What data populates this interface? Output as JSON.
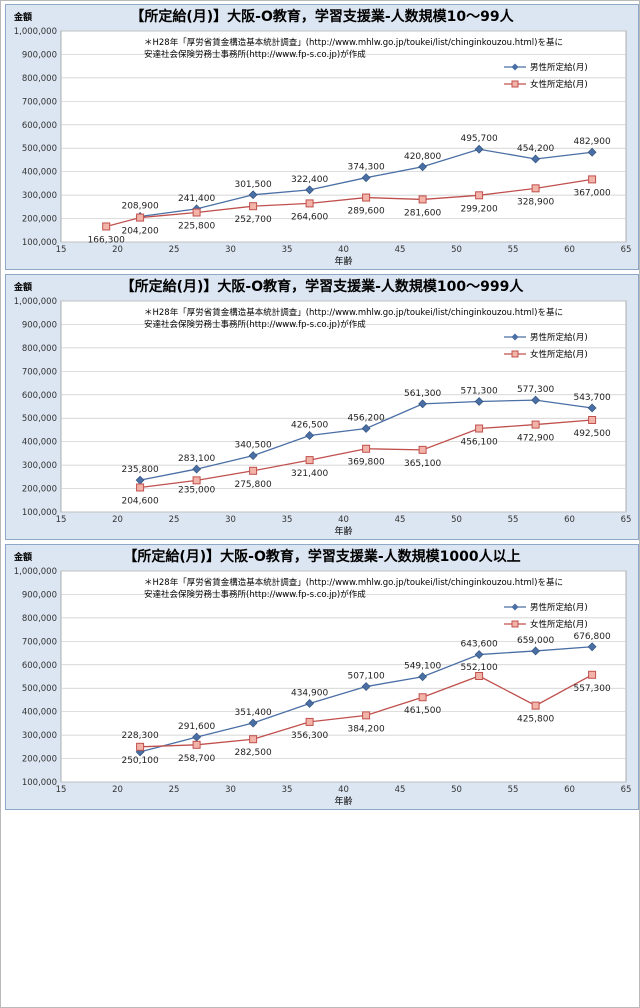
{
  "legend": {
    "male": "男性所定給(月)",
    "female": "女性所定給(月)"
  },
  "note": {
    "line1": "＊H28年「厚労省賃金構造基本統計調査」(http://www.mhlw.go.jp/toukei/list/chinginkouzou.html)を基に",
    "line2": "安達社会保険労務士事務所(http://www.fp-s.co.jp)が作成"
  },
  "colors": {
    "male": "#4a6fa5",
    "female": "#c0504d",
    "panel_bg": "#dce6f2",
    "plot_bg": "#ffffff"
  },
  "chart_data": [
    {
      "type": "line",
      "title": "【所定給(月)】大阪-O教育，学習支援業-人数規模10～99人",
      "ylabel": "金額",
      "xlabel": "年齢",
      "xlim": [
        15,
        65
      ],
      "ylim": [
        100000,
        1000000
      ],
      "xticks": [
        "15",
        "20",
        "25",
        "30",
        "35",
        "40",
        "45",
        "50",
        "55",
        "60",
        "65"
      ],
      "yticks": [
        "100,000",
        "200,000",
        "300,000",
        "400,000",
        "500,000",
        "600,000",
        "700,000",
        "800,000",
        "900,000",
        "1,000,000"
      ],
      "grid": true,
      "legend_position": "top-right",
      "series": [
        {
          "name": "男性所定給(月)",
          "x": [
            22,
            27,
            32,
            37,
            42,
            47,
            52,
            57,
            62
          ],
          "values": [
            208900,
            241400,
            301500,
            322400,
            374300,
            420800,
            495700,
            454200,
            482900
          ],
          "labels": [
            "208,900",
            "241,400",
            "301,500",
            "322,400",
            "374,300",
            "420,800",
            "495,700",
            "454,200",
            "482,900"
          ]
        },
        {
          "name": "女性所定給(月)",
          "x": [
            19,
            22,
            27,
            32,
            37,
            42,
            47,
            52,
            57,
            62
          ],
          "values": [
            166300,
            204200,
            225800,
            252700,
            264600,
            289600,
            281600,
            299200,
            328900,
            367000
          ],
          "labels": [
            "166,300",
            "204,200",
            "225,800",
            "252,700",
            "264,600",
            "289,600",
            "281,600",
            "299,200",
            "328,900",
            "367,000"
          ]
        }
      ]
    },
    {
      "type": "line",
      "title": "【所定給(月)】大阪-O教育，学習支援業-人数規模100～999人",
      "ylabel": "金額",
      "xlabel": "年齢",
      "xlim": [
        15,
        65
      ],
      "ylim": [
        100000,
        1000000
      ],
      "xticks": [
        "15",
        "20",
        "25",
        "30",
        "35",
        "40",
        "45",
        "50",
        "55",
        "60",
        "65"
      ],
      "yticks": [
        "100,000",
        "200,000",
        "300,000",
        "400,000",
        "500,000",
        "600,000",
        "700,000",
        "800,000",
        "900,000",
        "1,000,000"
      ],
      "grid": true,
      "legend_position": "top-right",
      "series": [
        {
          "name": "男性所定給(月)",
          "x": [
            22,
            27,
            32,
            37,
            42,
            47,
            52,
            57,
            62
          ],
          "values": [
            235800,
            283100,
            340500,
            426500,
            456200,
            561300,
            571300,
            577300,
            543700
          ],
          "labels": [
            "235,800",
            "283,100",
            "340,500",
            "426,500",
            "456,200",
            "561,300",
            "571,300",
            "577,300",
            "543,700"
          ]
        },
        {
          "name": "女性所定給(月)",
          "x": [
            22,
            27,
            32,
            37,
            42,
            47,
            52,
            57,
            62
          ],
          "values": [
            204600,
            235000,
            275800,
            321400,
            369800,
            365100,
            456100,
            472900,
            492500
          ],
          "labels": [
            "204,600",
            "235,000",
            "275,800",
            "321,400",
            "369,800",
            "365,100",
            "456,100",
            "472,900",
            "492,500"
          ]
        }
      ]
    },
    {
      "type": "line",
      "title": "【所定給(月)】大阪-O教育，学習支援業-人数規模1000人以上",
      "ylabel": "金額",
      "xlabel": "年齢",
      "xlim": [
        15,
        65
      ],
      "ylim": [
        100000,
        1000000
      ],
      "xticks": [
        "15",
        "20",
        "25",
        "30",
        "35",
        "40",
        "45",
        "50",
        "55",
        "60",
        "65"
      ],
      "yticks": [
        "100,000",
        "200,000",
        "300,000",
        "400,000",
        "500,000",
        "600,000",
        "700,000",
        "800,000",
        "900,000",
        "1,000,000"
      ],
      "grid": true,
      "legend_position": "top-right",
      "series": [
        {
          "name": "男性所定給(月)",
          "x": [
            22,
            27,
            32,
            37,
            42,
            47,
            52,
            57,
            62
          ],
          "values": [
            228300,
            291600,
            351400,
            434900,
            507100,
            549100,
            643600,
            659000,
            676800
          ],
          "labels": [
            "228,300",
            "291,600",
            "351,400",
            "434,900",
            "507,100",
            "549,100",
            "643,600",
            "659,000",
            "676,800"
          ]
        },
        {
          "name": "女性所定給(月)",
          "x": [
            22,
            27,
            32,
            37,
            42,
            47,
            52,
            57,
            62
          ],
          "values": [
            250100,
            258700,
            282500,
            356300,
            384200,
            461500,
            552100,
            425800,
            557300
          ],
          "labels": [
            "250,100",
            "258,700",
            "282,500",
            "356,300",
            "384,200",
            "461,500",
            "552,100",
            "425,800",
            "557,300"
          ]
        }
      ]
    }
  ]
}
